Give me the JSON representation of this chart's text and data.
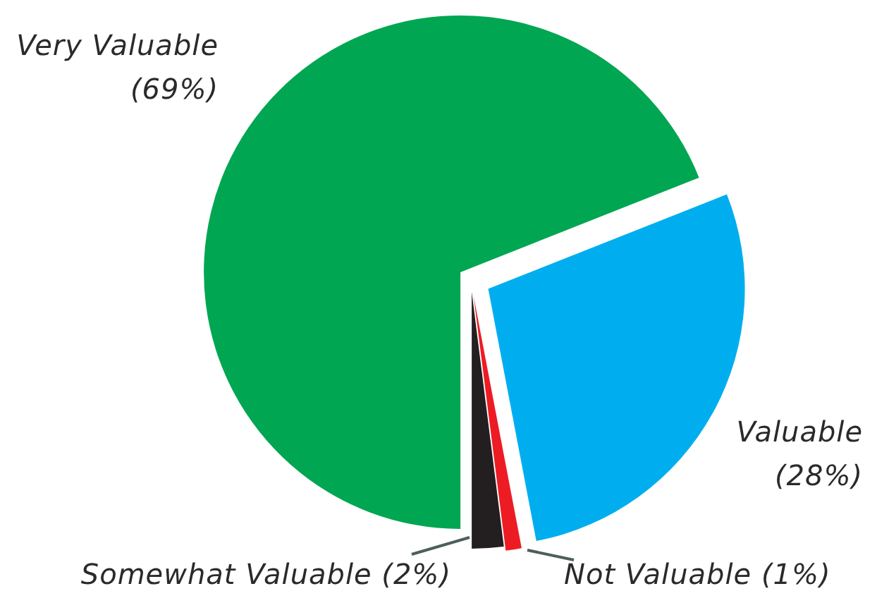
{
  "chart_data": {
    "type": "pie",
    "categories": [
      "Very Valuable",
      "Valuable",
      "Not Valuable",
      "Somewhat Valuable"
    ],
    "values": [
      69,
      28,
      1,
      2
    ],
    "colors": [
      "#00a651",
      "#00aeef",
      "#ed1c24",
      "#231f20"
    ],
    "value_labels": [
      "(69%)",
      "(28%)",
      "(1%)",
      "(2%)"
    ]
  }
}
